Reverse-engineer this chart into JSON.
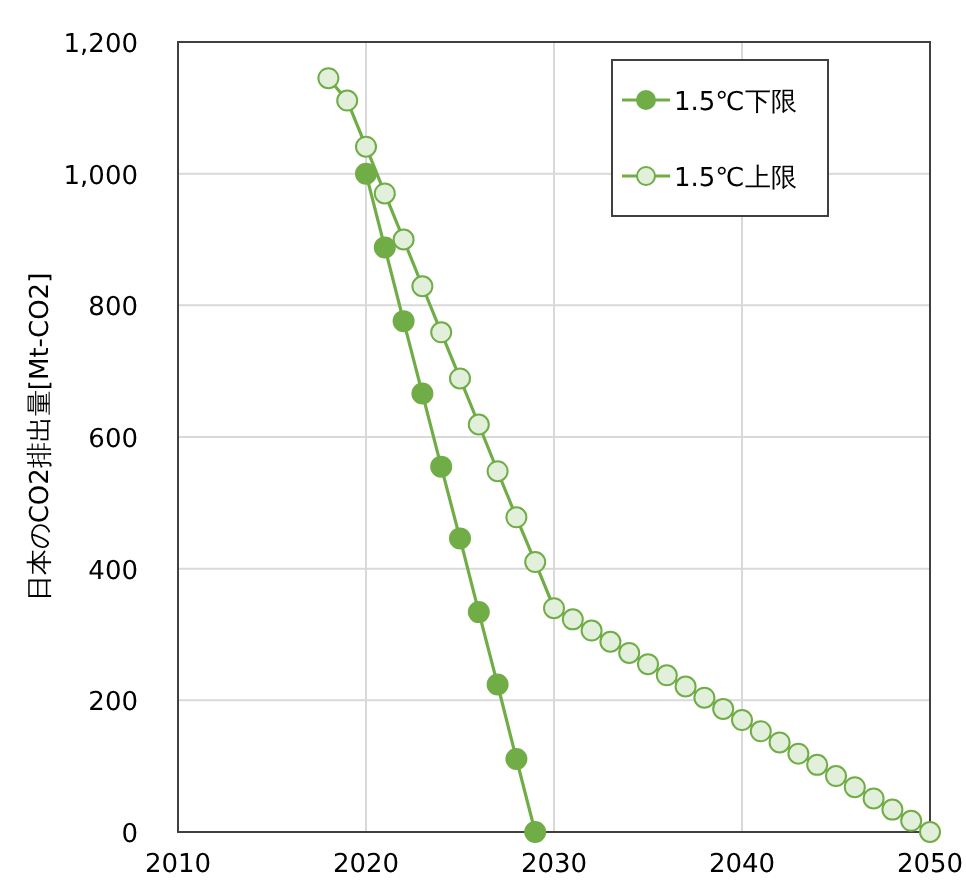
{
  "chart_data": {
    "type": "line",
    "ylabel": "日本のCO2排出量[Mt-CO2]",
    "xlim": [
      2010,
      2050
    ],
    "xticks": [
      2010,
      2020,
      2030,
      2040,
      2050
    ],
    "ylim": [
      0,
      1200
    ],
    "yticks": [
      0,
      200,
      400,
      600,
      800,
      {
        "value": 1000,
        "label": "1,000"
      },
      {
        "value": 1200,
        "label": "1,200"
      }
    ],
    "grid": true,
    "legend": "top right",
    "marker": "circle",
    "line_style": "solid",
    "series": [
      {
        "name": "1.5℃下限",
        "color": "#70ad47",
        "x": [
          2020,
          2021,
          2022,
          2023,
          2024,
          2025,
          2026,
          2027,
          2028,
          2029
        ],
        "values": [
          1000,
          888,
          776,
          666,
          555,
          446,
          334,
          224,
          111,
          0
        ]
      },
      {
        "name": "1.5℃上限",
        "color": "#70ad47",
        "x": [
          2018,
          2019,
          2020,
          2021,
          2022,
          2023,
          2024,
          2025,
          2026,
          2027,
          2028,
          2029,
          2030,
          2031,
          2032,
          2033,
          2034,
          2035,
          2036,
          2037,
          2038,
          2039,
          2040,
          2041,
          2042,
          2043,
          2044,
          2045,
          2046,
          2047,
          2048,
          2049,
          2050
        ],
        "values": [
          1145,
          1111,
          1041,
          970,
          900,
          829,
          759,
          689,
          619,
          548,
          478,
          410,
          340,
          323,
          306,
          289,
          272,
          255,
          238,
          221,
          204,
          187,
          170,
          153,
          136,
          119,
          102,
          85,
          68,
          51,
          34,
          17,
          0
        ]
      }
    ]
  }
}
